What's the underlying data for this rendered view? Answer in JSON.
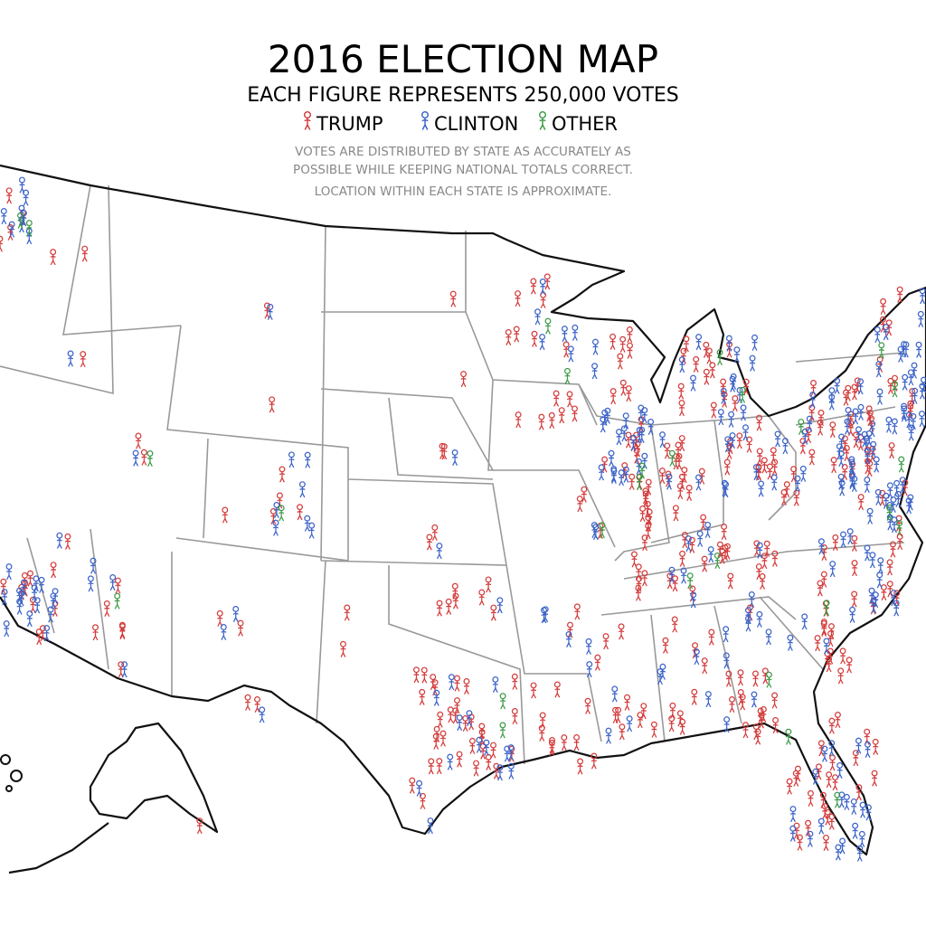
{
  "title": "2016 ELECTION MAP",
  "subtitle": "EACH FIGURE REPRESENTS 250,000 VOTES",
  "legend": [
    {
      "name": "TRUMP",
      "color": "#d43a3a"
    },
    {
      "name": "CLINTON",
      "color": "#3a62c8"
    },
    {
      "name": "OTHER",
      "color": "#3a9a45"
    }
  ],
  "notes": [
    "VOTES ARE DISTRIBUTED BY STATE AS ACCURATELY AS",
    "POSSIBLE WHILE KEEPING NATIONAL TOTALS CORRECT.",
    "LOCATION WITHIN EACH STATE IS APPROXIMATE."
  ]
}
